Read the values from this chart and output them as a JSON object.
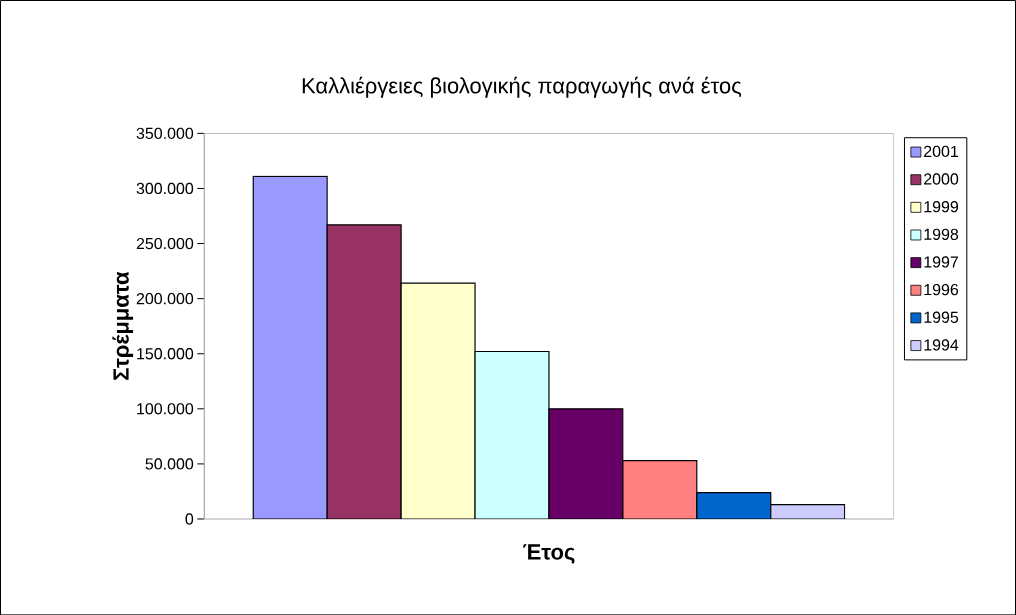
{
  "chart_data": {
    "type": "bar",
    "title": "Καλλιέργειες βιολογικής παραγωγής ανά έτος",
    "xlabel": "Έτος",
    "ylabel": "Στρέμματα",
    "categories": [
      null
    ],
    "series": [
      {
        "name": "2001",
        "color": "#9999ff",
        "values": [
          311000
        ]
      },
      {
        "name": "2000",
        "color": "#993366",
        "values": [
          267000
        ]
      },
      {
        "name": "1999",
        "color": "#ffffcc",
        "values": [
          214000
        ]
      },
      {
        "name": "1998",
        "color": "#ccffff",
        "values": [
          152000
        ]
      },
      {
        "name": "1997",
        "color": "#660066",
        "values": [
          100000
        ]
      },
      {
        "name": "1996",
        "color": "#ff8080",
        "values": [
          53000
        ]
      },
      {
        "name": "1995",
        "color": "#0066cc",
        "values": [
          24000
        ]
      },
      {
        "name": "1994",
        "color": "#ccccff",
        "values": [
          13000
        ]
      }
    ],
    "ylim": [
      0,
      350000
    ],
    "yticks": [
      {
        "value": 0,
        "label": "0"
      },
      {
        "value": 50000,
        "label": "50.000"
      },
      {
        "value": 100000,
        "label": "100.000"
      },
      {
        "value": 150000,
        "label": "150.000"
      },
      {
        "value": 200000,
        "label": "200.000"
      },
      {
        "value": 250000,
        "label": "250.000"
      },
      {
        "value": 300000,
        "label": "300.000"
      },
      {
        "value": 350000,
        "label": "350.000"
      }
    ],
    "legend": "right"
  }
}
